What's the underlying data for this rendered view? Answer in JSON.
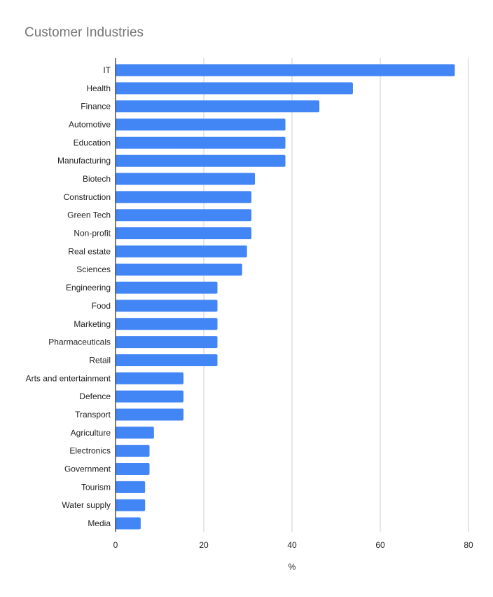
{
  "chart_data": {
    "type": "bar",
    "orientation": "horizontal",
    "title": "Customer Industries",
    "xlabel": "%",
    "ylabel": "",
    "xlim": [
      0,
      80
    ],
    "xticks": [
      0,
      20,
      40,
      60,
      80
    ],
    "grid": true,
    "color": "#4285f4",
    "categories": [
      "IT",
      "Health",
      "Finance",
      "Automotive",
      "Education",
      "Manufacturing",
      "Biotech",
      "Construction",
      "Green Tech",
      "Non-profit",
      "Real estate",
      "Sciences",
      "Engineering",
      "Food",
      "Marketing",
      "Pharmaceuticals",
      "Retail",
      "Arts and entertainment",
      "Defence",
      "Transport",
      "Agriculture",
      "Electronics",
      "Government",
      "Tourism",
      "Water supply",
      "Media"
    ],
    "values": [
      76.9,
      53.8,
      46.2,
      38.5,
      38.5,
      38.5,
      31.6,
      30.8,
      30.8,
      30.8,
      29.8,
      28.7,
      23.1,
      23.1,
      23.1,
      23.1,
      23.1,
      15.4,
      15.4,
      15.4,
      8.7,
      7.7,
      7.7,
      6.7,
      6.7,
      5.7
    ]
  }
}
